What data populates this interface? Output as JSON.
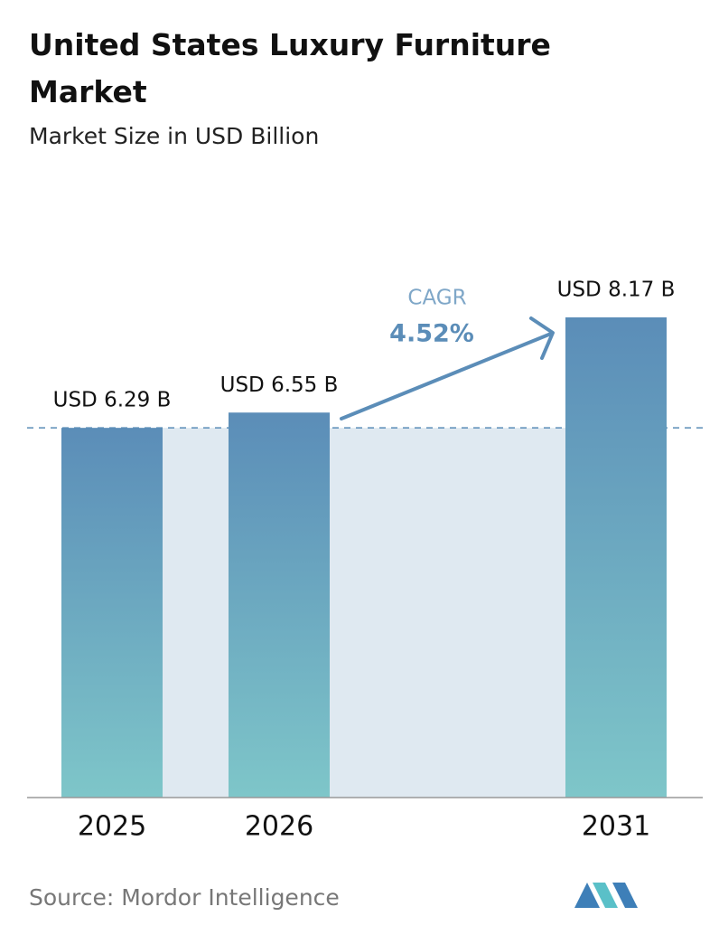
{
  "chart_data": {
    "type": "bar",
    "title": "United States Luxury Furniture Market",
    "subtitle": "Market Size in USD Billion",
    "categories": [
      "2025",
      "2026",
      "2031"
    ],
    "values": [
      6.29,
      6.55,
      8.17
    ],
    "value_labels": [
      "USD 6.29 B",
      "USD 6.55 B",
      "USD 8.17 B"
    ],
    "color": "#5b8db8",
    "annotation": {
      "label": "CAGR",
      "value": "4.52%"
    },
    "source": "Source: Mordor Intelligence"
  }
}
